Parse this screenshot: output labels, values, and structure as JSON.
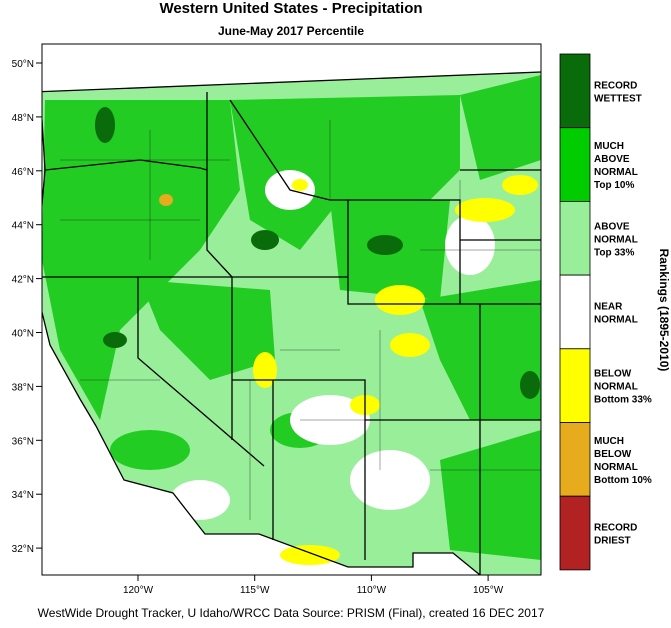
{
  "title": "Western United States - Precipitation",
  "subtitle": "June-May 2017 Percentile",
  "legend_title": "Rankings (1895-2010)",
  "footer": "WestWide Drought Tracker, U Idaho/WRCC Data Source: PRISM (Final), created 16 DEC 2017",
  "lat_ticks": [
    "50°N",
    "48°N",
    "46°N",
    "44°N",
    "42°N",
    "40°N",
    "38°N",
    "36°N",
    "34°N",
    "32°N"
  ],
  "lon_ticks": [
    "120°W",
    "115°W",
    "110°W",
    "105°W"
  ],
  "legend": [
    {
      "lines": [
        "RECORD",
        "WETTEST"
      ],
      "color": "#0a6b0a"
    },
    {
      "lines": [
        "MUCH",
        "ABOVE",
        "NORMAL",
        "Top 10%"
      ],
      "color": "#00cc00"
    },
    {
      "lines": [
        "ABOVE",
        "NORMAL",
        "Top 33%"
      ],
      "color": "#99ee99"
    },
    {
      "lines": [
        "NEAR",
        "NORMAL"
      ],
      "color": "#ffffff"
    },
    {
      "lines": [
        "BELOW",
        "NORMAL",
        "Bottom 33%"
      ],
      "color": "#ffff00"
    },
    {
      "lines": [
        "MUCH",
        "BELOW",
        "NORMAL",
        "Bottom 10%"
      ],
      "color": "#e6ac1e"
    },
    {
      "lines": [
        "RECORD",
        "DRIEST"
      ],
      "color": "#b22222"
    }
  ]
}
